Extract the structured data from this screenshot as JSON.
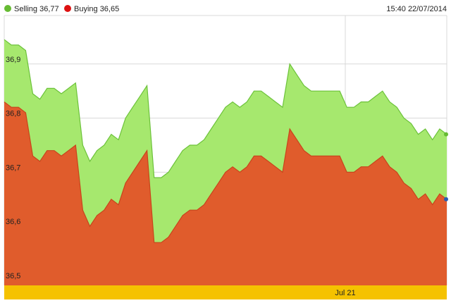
{
  "chart_data": {
    "type": "area",
    "timestamp": "15:40 22/07/2014",
    "xtick_label": "Jul 21",
    "yticks": [
      "36,5",
      "36,6",
      "36,7",
      "36,8",
      "36,9"
    ],
    "ylim": [
      36.5,
      36.95
    ],
    "grid": true,
    "legend_placement": "top-left",
    "colors": {
      "selling": "#a6e86e",
      "selling_line": "#6cc23a",
      "buying": "#e05c2c",
      "buying_line": "#c8451c",
      "axis_band": "#f5c200",
      "grid": "#d8d8d8",
      "endpoint_selling": "#66bb33",
      "endpoint_buying": "#2a5db0"
    },
    "series": [
      {
        "key": "selling",
        "name": "Selling 36,77",
        "values": [
          36.945,
          36.935,
          36.935,
          36.925,
          36.845,
          36.835,
          36.855,
          36.855,
          36.845,
          36.855,
          36.865,
          36.75,
          36.72,
          36.74,
          36.75,
          36.77,
          36.76,
          36.8,
          36.82,
          36.84,
          36.86,
          36.69,
          36.69,
          36.7,
          36.72,
          36.74,
          36.75,
          36.75,
          36.76,
          36.78,
          36.8,
          36.82,
          36.83,
          36.82,
          36.83,
          36.85,
          36.85,
          36.84,
          36.83,
          36.82,
          36.9,
          36.88,
          36.86,
          36.85,
          36.85,
          36.85,
          36.85,
          36.85,
          36.82,
          36.82,
          36.83,
          36.83,
          36.84,
          36.85,
          36.83,
          36.82,
          36.8,
          36.79,
          36.77,
          36.78,
          36.76,
          36.78,
          36.77
        ]
      },
      {
        "key": "buying",
        "name": "Buying 36,65",
        "values": [
          36.83,
          36.82,
          36.82,
          36.81,
          36.73,
          36.72,
          36.74,
          36.74,
          36.73,
          36.74,
          36.75,
          36.63,
          36.6,
          36.62,
          36.63,
          36.65,
          36.64,
          36.68,
          36.7,
          36.72,
          36.74,
          36.57,
          36.57,
          36.58,
          36.6,
          36.62,
          36.63,
          36.63,
          36.64,
          36.66,
          36.68,
          36.7,
          36.71,
          36.7,
          36.71,
          36.73,
          36.73,
          36.72,
          36.71,
          36.7,
          36.78,
          36.76,
          36.74,
          36.73,
          36.73,
          36.73,
          36.73,
          36.73,
          36.7,
          36.7,
          36.71,
          36.71,
          36.72,
          36.73,
          36.71,
          36.7,
          36.68,
          36.67,
          36.65,
          36.66,
          36.64,
          36.66,
          36.65
        ]
      }
    ]
  }
}
